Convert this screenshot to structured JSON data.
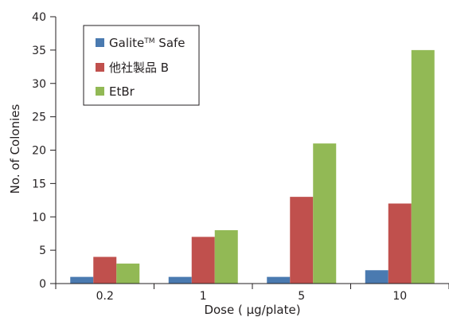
{
  "chart_data": {
    "type": "bar",
    "xlabel": "Dose ( µg/plate)",
    "ylabel": "No. of Colonies",
    "categories": [
      "0.2",
      "1",
      "5",
      "10"
    ],
    "ylim": [
      0,
      40
    ],
    "yticks": [
      0,
      5,
      10,
      15,
      20,
      25,
      30,
      35,
      40
    ],
    "grid": false,
    "legend_position": "top-left",
    "series": [
      {
        "name": "Galite™ Safe",
        "name_base": "Galite",
        "name_tm": "TM",
        "name_suffix": " Safe",
        "color": "#4a7ab0",
        "values": [
          1,
          1,
          1,
          2
        ]
      },
      {
        "name": "他社製品 B",
        "color": "#c0504d",
        "values": [
          4,
          7,
          13,
          12
        ]
      },
      {
        "name": "EtBr",
        "color": "#92b955",
        "values": [
          3,
          8,
          21,
          35
        ]
      }
    ]
  }
}
